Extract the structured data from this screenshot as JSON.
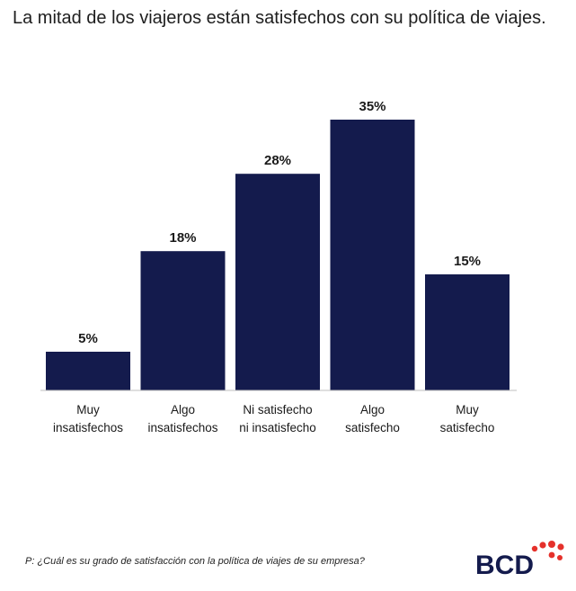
{
  "title": "La mitad de los viajeros están satisfechos con su política de viajes.",
  "footnote": "P: ¿Cuál es su grado de satisfacción con la política de viajes de su empresa?",
  "logo": {
    "text": "BCD",
    "dot_color": "#e5312b",
    "text_color": "#141b4d"
  },
  "colors": {
    "bar": "#141b4d"
  },
  "chart_data": {
    "type": "bar",
    "categories": [
      [
        "Muy",
        "insatisfechos"
      ],
      [
        "Algo",
        "insatisfechos"
      ],
      [
        "Ni satisfecho",
        "ni insatisfecho"
      ],
      [
        "Algo",
        "satisfecho"
      ],
      [
        "Muy",
        "satisfecho"
      ]
    ],
    "values": [
      5,
      18,
      28,
      35,
      15
    ],
    "value_labels": [
      "5%",
      "18%",
      "28%",
      "35%",
      "15%"
    ],
    "ylim": [
      0,
      35
    ],
    "grid": false,
    "legend": "none"
  }
}
